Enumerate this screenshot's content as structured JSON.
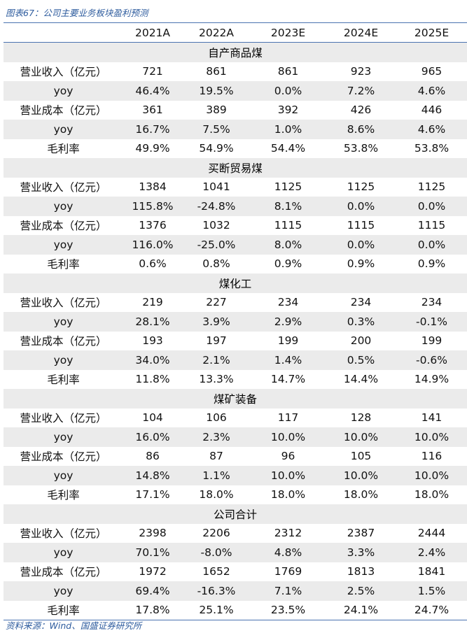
{
  "title": "图表67：公司主要业务板块盈利预测",
  "columns": [
    "",
    "2021A",
    "2022A",
    "2023E",
    "2024E",
    "2025E"
  ],
  "sections": [
    {
      "name": "自产商品煤",
      "rows": [
        [
          "营业收入（亿元）",
          "721",
          "861",
          "861",
          "923",
          "965"
        ],
        [
          "yoy",
          "46.4%",
          "19.5%",
          "0.0%",
          "7.2%",
          "4.6%"
        ],
        [
          "营业成本（亿元）",
          "361",
          "389",
          "392",
          "426",
          "446"
        ],
        [
          "yoy",
          "16.7%",
          "7.5%",
          "1.0%",
          "8.6%",
          "4.6%"
        ],
        [
          "毛利率",
          "49.9%",
          "54.9%",
          "54.4%",
          "53.8%",
          "53.8%"
        ]
      ]
    },
    {
      "name": "买断贸易煤",
      "rows": [
        [
          "营业收入（亿元）",
          "1384",
          "1041",
          "1125",
          "1125",
          "1125"
        ],
        [
          "yoy",
          "115.8%",
          "-24.8%",
          "8.1%",
          "0.0%",
          "0.0%"
        ],
        [
          "营业成本（亿元）",
          "1376",
          "1032",
          "1115",
          "1115",
          "1115"
        ],
        [
          "yoy",
          "116.0%",
          "-25.0%",
          "8.0%",
          "0.0%",
          "0.0%"
        ],
        [
          "毛利率",
          "0.6%",
          "0.8%",
          "0.9%",
          "0.9%",
          "0.9%"
        ]
      ]
    },
    {
      "name": "煤化工",
      "rows": [
        [
          "营业收入（亿元）",
          "219",
          "227",
          "234",
          "234",
          "234"
        ],
        [
          "yoy",
          "28.1%",
          "3.9%",
          "2.9%",
          "0.3%",
          "-0.1%"
        ],
        [
          "营业成本（亿元）",
          "193",
          "197",
          "199",
          "200",
          "199"
        ],
        [
          "yoy",
          "34.0%",
          "2.1%",
          "1.4%",
          "0.5%",
          "-0.6%"
        ],
        [
          "毛利率",
          "11.8%",
          "13.3%",
          "14.7%",
          "14.4%",
          "14.9%"
        ]
      ]
    },
    {
      "name": "煤矿装备",
      "rows": [
        [
          "营业收入（亿元）",
          "104",
          "106",
          "117",
          "128",
          "141"
        ],
        [
          "yoy",
          "16.0%",
          "2.3%",
          "10.0%",
          "10.0%",
          "10.0%"
        ],
        [
          "营业成本（亿元）",
          "86",
          "87",
          "96",
          "105",
          "116"
        ],
        [
          "yoy",
          "14.8%",
          "1.1%",
          "10.0%",
          "10.0%",
          "10.0%"
        ],
        [
          "毛利率",
          "17.1%",
          "18.0%",
          "18.0%",
          "18.0%",
          "18.0%"
        ]
      ]
    },
    {
      "name": "公司合计",
      "rows": [
        [
          "营业收入（亿元）",
          "2398",
          "2206",
          "2312",
          "2387",
          "2444"
        ],
        [
          "yoy",
          "70.1%",
          "-8.0%",
          "4.8%",
          "3.3%",
          "2.4%"
        ],
        [
          "营业成本（亿元）",
          "1972",
          "1652",
          "1769",
          "1813",
          "1841"
        ],
        [
          "yoy",
          "69.4%",
          "-16.3%",
          "7.1%",
          "2.5%",
          "1.5%"
        ],
        [
          "毛利率",
          "17.8%",
          "25.1%",
          "23.5%",
          "24.1%",
          "24.7%"
        ]
      ]
    }
  ],
  "source": "资料来源：Wind、国盛证券研究所"
}
